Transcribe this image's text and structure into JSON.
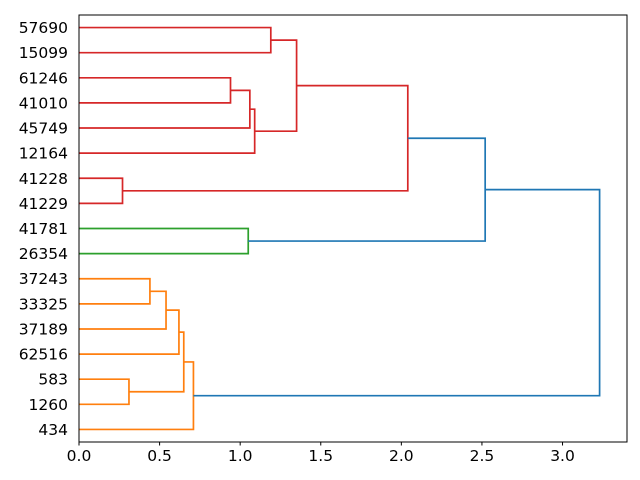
{
  "figure": {
    "title": "",
    "background": "#ffffff"
  },
  "chart_data": {
    "type": "dendrogram",
    "orientation": "right",
    "title": "",
    "xlabel": "",
    "ylabel": "",
    "grid": false,
    "legend": null,
    "xlim": [
      0,
      3.4
    ],
    "x_ticks": [
      "0.0",
      "0.5",
      "1.0",
      "1.5",
      "2.0",
      "2.5",
      "3.0"
    ],
    "leaves": [
      "57690",
      "15099",
      "61246",
      "41010",
      "45749",
      "12164",
      "41228",
      "41229",
      "41781",
      "26354",
      "37243",
      "33325",
      "37189",
      "62516",
      "583",
      "1260",
      "434"
    ],
    "links": [
      {
        "id": "L1",
        "children": [
          "57690",
          "15099"
        ],
        "distance": 1.19,
        "color": "red"
      },
      {
        "id": "L2",
        "children": [
          "61246",
          "41010"
        ],
        "distance": 0.94,
        "color": "red"
      },
      {
        "id": "L3",
        "children": [
          "L2",
          "45749"
        ],
        "distance": 1.06,
        "color": "red"
      },
      {
        "id": "L4",
        "children": [
          "L3",
          "12164"
        ],
        "distance": 1.09,
        "color": "red"
      },
      {
        "id": "L5",
        "children": [
          "L1",
          "L4"
        ],
        "distance": 1.35,
        "color": "red"
      },
      {
        "id": "L6",
        "children": [
          "41228",
          "41229"
        ],
        "distance": 0.27,
        "color": "red"
      },
      {
        "id": "L7",
        "children": [
          "L5",
          "L6"
        ],
        "distance": 2.04,
        "color": "red"
      },
      {
        "id": "L8",
        "children": [
          "41781",
          "26354"
        ],
        "distance": 1.05,
        "color": "green"
      },
      {
        "id": "L9",
        "children": [
          "37243",
          "33325"
        ],
        "distance": 0.44,
        "color": "orange"
      },
      {
        "id": "L10",
        "children": [
          "L9",
          "37189"
        ],
        "distance": 0.54,
        "color": "orange"
      },
      {
        "id": "L11",
        "children": [
          "L10",
          "62516"
        ],
        "distance": 0.62,
        "color": "orange"
      },
      {
        "id": "L12",
        "children": [
          "583",
          "1260"
        ],
        "distance": 0.31,
        "color": "orange"
      },
      {
        "id": "L13",
        "children": [
          "L11",
          "L12"
        ],
        "distance": 0.65,
        "color": "orange"
      },
      {
        "id": "L14",
        "children": [
          "L13",
          "434"
        ],
        "distance": 0.71,
        "color": "orange"
      },
      {
        "id": "L15",
        "children": [
          "L7",
          "L8"
        ],
        "distance": 2.52,
        "color": "blue"
      },
      {
        "id": "L16",
        "children": [
          "L15",
          "L14"
        ],
        "distance": 3.23,
        "color": "blue"
      }
    ],
    "colors": {
      "blue": "#1f77b4",
      "orange": "#ff7f0e",
      "green": "#2ca02c",
      "red": "#d62728"
    },
    "axis_color": "#000000"
  }
}
